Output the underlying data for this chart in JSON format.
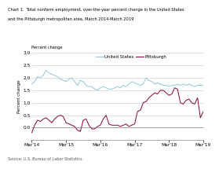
{
  "title_line1": "Chart 1.  Total nonfarm employment, over-the-year percent change in the United States",
  "title_line2": "and the Pittsburgh metropolitan area, March 2014-March 2019",
  "ylabel": "Percent change",
  "source": "Source: U.S. Bureau of Labor Statistics.",
  "ylim": [
    -0.5,
    3.0
  ],
  "yticks": [
    0.0,
    0.5,
    1.0,
    1.5,
    2.0,
    2.5,
    3.0
  ],
  "xtick_labels": [
    "Mar'14",
    "Mar'15",
    "Mar'16",
    "Mar'17",
    "Mar'18",
    "Mar'19"
  ],
  "us_color": "#92C5DE",
  "pitt_color": "#8B003A",
  "us_label": "United States",
  "pitt_label": "Pittsburgh",
  "us_data": [
    1.75,
    1.85,
    2.05,
    2.0,
    2.1,
    2.3,
    2.2,
    2.15,
    2.1,
    2.05,
    1.95,
    1.9,
    1.85,
    1.95,
    2.0,
    1.85,
    1.7,
    1.9,
    1.85,
    1.7,
    1.65,
    1.65,
    1.55,
    1.5,
    1.6,
    1.65,
    1.6,
    1.55,
    1.55,
    1.6,
    1.65,
    1.6,
    1.7,
    1.65,
    1.75,
    1.85,
    1.8,
    1.75,
    1.7,
    1.75,
    2.0,
    1.9,
    1.85,
    1.75,
    1.8,
    1.75,
    1.7,
    1.7,
    1.65,
    1.7,
    1.7,
    1.75,
    1.7,
    1.75,
    1.7,
    1.75,
    1.7,
    1.65,
    1.7,
    1.7,
    1.7
  ],
  "pitt_data": [
    -0.2,
    0.1,
    0.3,
    0.25,
    0.35,
    0.4,
    0.3,
    0.2,
    0.35,
    0.45,
    0.5,
    0.45,
    0.2,
    0.15,
    0.1,
    0.05,
    -0.1,
    -0.15,
    0.3,
    0.35,
    0.1,
    -0.05,
    -0.05,
    0.05,
    0.1,
    0.35,
    0.5,
    0.15,
    0.1,
    0.1,
    0.1,
    0.05,
    0.1,
    0.15,
    0.05,
    0.1,
    0.15,
    0.65,
    0.7,
    1.0,
    1.05,
    1.2,
    1.3,
    1.4,
    1.35,
    1.5,
    1.5,
    1.4,
    1.3,
    1.35,
    1.6,
    1.55,
    1.0,
    0.95,
    1.1,
    1.15,
    1.0,
    0.95,
    1.2,
    0.4,
    0.65
  ]
}
